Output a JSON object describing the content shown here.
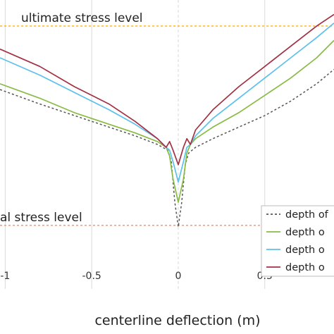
{
  "chart_data": {
    "type": "line",
    "title": "",
    "xlabel": "centerline deflection (m)",
    "ylabel": "",
    "xlim": [
      -1.03,
      0.9
    ],
    "ylim": [
      0,
      1
    ],
    "x_ticks": [
      -1,
      -0.5,
      0,
      0.5
    ],
    "x_tick_labels": [
      "-1",
      "-0.5",
      "0",
      "0.5"
    ],
    "grid": true,
    "reference_lines": [
      {
        "label": "ultimate stress level",
        "y": 0.91,
        "color": "#f0b030"
      },
      {
        "label": "al stress level",
        "y": 0.22,
        "color": "#e8907a"
      }
    ],
    "legend": {
      "position": "bottom-right",
      "entries": [
        "depth of",
        "depth o",
        "depth o",
        "depth o"
      ]
    },
    "series": [
      {
        "name": "depth of",
        "color": "#555555",
        "dash": true,
        "x": [
          -1.03,
          -0.8,
          -0.6,
          -0.4,
          -0.25,
          -0.12,
          -0.06,
          -0.04,
          -0.02,
          0.0,
          0.02,
          0.04,
          0.06,
          0.1,
          0.2,
          0.35,
          0.5,
          0.65,
          0.8,
          0.9
        ],
        "y": [
          0.69,
          0.64,
          0.6,
          0.56,
          0.53,
          0.5,
          0.48,
          0.44,
          0.3,
          0.215,
          0.3,
          0.43,
          0.47,
          0.49,
          0.52,
          0.56,
          0.6,
          0.65,
          0.71,
          0.76
        ]
      },
      {
        "name": "depth o",
        "color": "#88bb44",
        "dash": false,
        "x": [
          -1.03,
          -0.8,
          -0.6,
          -0.4,
          -0.25,
          -0.12,
          -0.07,
          -0.05,
          -0.03,
          0.0,
          0.03,
          0.05,
          0.07,
          0.1,
          0.2,
          0.35,
          0.5,
          0.65,
          0.8,
          0.9
        ],
        "y": [
          0.71,
          0.66,
          0.61,
          0.57,
          0.54,
          0.51,
          0.49,
          0.46,
          0.38,
          0.3,
          0.38,
          0.47,
          0.5,
          0.52,
          0.56,
          0.61,
          0.67,
          0.73,
          0.8,
          0.86
        ]
      },
      {
        "name": "depth o",
        "color": "#5bc0eb",
        "dash": false,
        "x": [
          -1.03,
          -0.8,
          -0.6,
          -0.4,
          -0.25,
          -0.12,
          -0.07,
          -0.05,
          -0.03,
          0.0,
          0.03,
          0.05,
          0.07,
          0.1,
          0.2,
          0.35,
          0.5,
          0.65,
          0.8,
          0.9
        ],
        "y": [
          0.8,
          0.74,
          0.68,
          0.62,
          0.57,
          0.52,
          0.49,
          0.48,
          0.44,
          0.37,
          0.44,
          0.49,
          0.5,
          0.53,
          0.59,
          0.66,
          0.73,
          0.8,
          0.87,
          0.92
        ]
      },
      {
        "name": "depth o",
        "color": "#a33044",
        "dash": false,
        "x": [
          -1.03,
          -0.8,
          -0.6,
          -0.4,
          -0.25,
          -0.12,
          -0.07,
          -0.05,
          -0.03,
          0.0,
          0.03,
          0.05,
          0.07,
          0.1,
          0.2,
          0.35,
          0.5,
          0.65,
          0.8,
          0.9
        ],
        "y": [
          0.83,
          0.77,
          0.7,
          0.64,
          0.58,
          0.52,
          0.49,
          0.51,
          0.48,
          0.43,
          0.49,
          0.52,
          0.5,
          0.55,
          0.62,
          0.7,
          0.77,
          0.84,
          0.91,
          0.95
        ]
      }
    ]
  }
}
